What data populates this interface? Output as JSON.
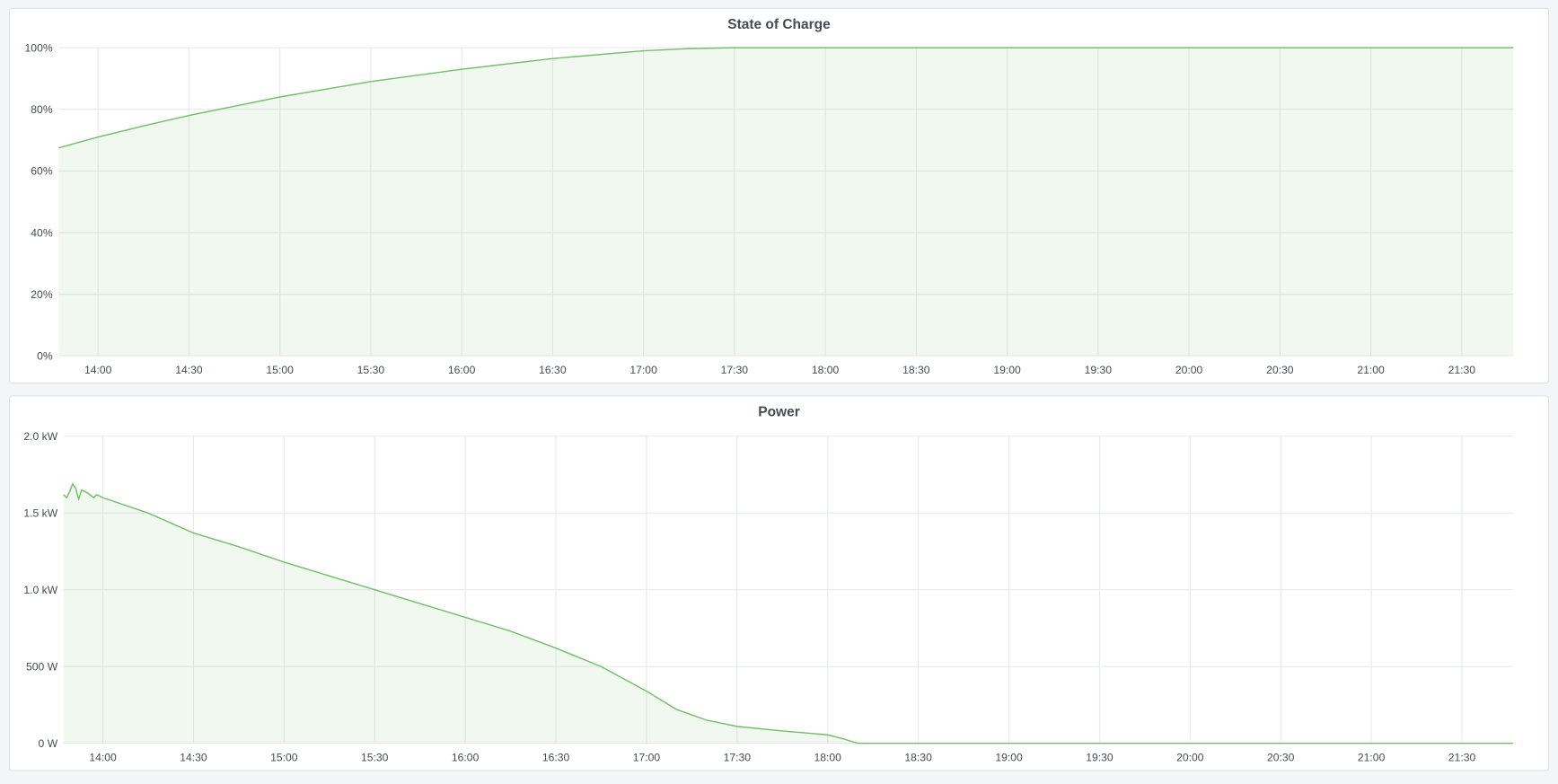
{
  "chart_data": [
    {
      "type": "area",
      "title": "State of Charge",
      "xlim": [
        "13:47",
        "21:47"
      ],
      "ylim": [
        0,
        100
      ],
      "y_ticks": [
        "0%",
        "20%",
        "40%",
        "60%",
        "80%",
        "100%"
      ],
      "y_tick_values": [
        0,
        20,
        40,
        60,
        80,
        100
      ],
      "x_ticks": [
        "14:00",
        "14:30",
        "15:00",
        "15:30",
        "16:00",
        "16:30",
        "17:00",
        "17:30",
        "18:00",
        "18:30",
        "19:00",
        "19:30",
        "20:00",
        "20:30",
        "21:00",
        "21:30"
      ],
      "grid": true,
      "color": "#73bf69",
      "series": [
        {
          "x": [
            "13:47",
            "14:00",
            "14:15",
            "14:30",
            "14:45",
            "15:00",
            "15:30",
            "16:00",
            "16:30",
            "17:00",
            "17:15",
            "17:30",
            "21:47"
          ],
          "y": [
            67.5,
            71,
            74.6,
            78,
            81,
            84,
            89,
            93,
            96.5,
            99,
            99.7,
            100,
            100
          ]
        }
      ]
    },
    {
      "type": "area",
      "title": "Power",
      "xlim": [
        "13:47",
        "21:47"
      ],
      "ylim": [
        0,
        2000
      ],
      "y_ticks": [
        "0 W",
        "500 W",
        "1.0 kW",
        "1.5 kW",
        "2.0 kW"
      ],
      "y_tick_values": [
        0,
        500,
        1000,
        1500,
        2000
      ],
      "x_ticks": [
        "14:00",
        "14:30",
        "15:00",
        "15:30",
        "16:00",
        "16:30",
        "17:00",
        "17:30",
        "18:00",
        "18:30",
        "19:00",
        "19:30",
        "20:00",
        "20:30",
        "21:00",
        "21:30"
      ],
      "grid": true,
      "color": "#73bf69",
      "series": [
        {
          "x": [
            "13:47",
            "13:48",
            "13:49",
            "13:50",
            "13:51",
            "13:52",
            "13:53",
            "13:55",
            "13:57",
            "13:58",
            "14:00",
            "14:15",
            "14:30",
            "14:45",
            "15:00",
            "15:15",
            "15:30",
            "15:45",
            "16:00",
            "16:15",
            "16:30",
            "16:45",
            "17:00",
            "17:10",
            "17:20",
            "17:30",
            "17:45",
            "18:00",
            "18:05",
            "18:10",
            "21:47"
          ],
          "y": [
            1620,
            1600,
            1640,
            1690,
            1660,
            1590,
            1650,
            1630,
            1600,
            1620,
            1600,
            1500,
            1370,
            1280,
            1180,
            1090,
            1000,
            910,
            820,
            730,
            620,
            500,
            340,
            220,
            150,
            110,
            80,
            55,
            30,
            0,
            0
          ]
        }
      ]
    }
  ]
}
